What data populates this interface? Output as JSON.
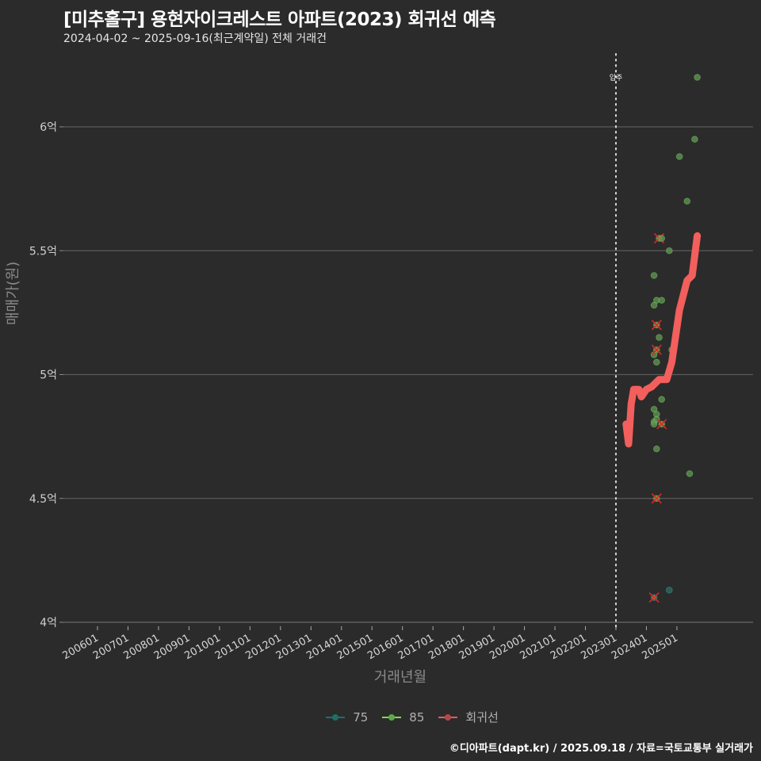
{
  "header": {
    "title": "[미추홀구] 용현자이크레스트 아파트(2023) 회귀선 예측",
    "subtitle": "2024-04-02 ~ 2025-09-16(최근계약일) 전체 거래건"
  },
  "axes": {
    "ylabel": "매매가(원)",
    "xlabel": "거래년월",
    "yticks": [
      "4억",
      "4.5억",
      "5억",
      "5.5억",
      "6억"
    ],
    "xticks": [
      "200601",
      "200701",
      "200801",
      "200901",
      "201001",
      "201101",
      "201201",
      "201301",
      "201401",
      "201501",
      "201601",
      "201701",
      "201801",
      "201901",
      "202001",
      "202101",
      "202201",
      "202301",
      "202401",
      "202501"
    ],
    "vline_label": "입주"
  },
  "legend": {
    "items": [
      {
        "label": "75",
        "color": "#2a9d8f"
      },
      {
        "label": "85",
        "color": "#7ed957"
      },
      {
        "label": "회귀선",
        "color": "#f25f5c"
      }
    ]
  },
  "footer": {
    "credit": "©디아파트(dapt.kr) / 2025.09.18 / 자료=국토교통부 실거래가"
  },
  "colors": {
    "background": "#2b2b2b",
    "grid": "#5a5a5a",
    "regression": "#f25f5c",
    "series_75": "#2a9d8f",
    "series_85": "#6aa85a",
    "outlier_x": "#d62828"
  },
  "chart_data": {
    "type": "scatter",
    "title": "[미추홀구] 용현자이크레스트 아파트(2023) 회귀선 예측",
    "subtitle": "2024-04-02 ~ 2025-09-16(최근계약일) 전체 거래건",
    "xlabel": "거래년월",
    "ylabel": "매매가(원)",
    "ylim": [
      4.0,
      6.3
    ],
    "y_unit": "억",
    "xlim": [
      "200501",
      "202601"
    ],
    "grid": true,
    "legend_position": "bottom",
    "vline": {
      "x": "202301",
      "label": "입주",
      "style": "dotted"
    },
    "series": [
      {
        "name": "75",
        "type": "scatter",
        "points": [
          {
            "x": "2024.04",
            "y": 4.1,
            "outlier": true
          },
          {
            "x": "2024.10",
            "y": 4.13
          }
        ]
      },
      {
        "name": "85",
        "type": "scatter",
        "points": [
          {
            "x": "2024.04",
            "y": 5.4
          },
          {
            "x": "2024.04",
            "y": 5.28
          },
          {
            "x": "2024.04",
            "y": 5.08
          },
          {
            "x": "2024.04",
            "y": 4.86
          },
          {
            "x": "2024.04",
            "y": 4.81
          },
          {
            "x": "2024.04",
            "y": 4.8
          },
          {
            "x": "2024.05",
            "y": 4.7
          },
          {
            "x": "2024.05",
            "y": 4.84
          },
          {
            "x": "2024.05",
            "y": 4.82
          },
          {
            "x": "2024.05",
            "y": 5.3
          },
          {
            "x": "2024.05",
            "y": 5.05
          },
          {
            "x": "2024.05",
            "y": 5.2,
            "outlier": true
          },
          {
            "x": "2024.05",
            "y": 5.1,
            "outlier": true
          },
          {
            "x": "2024.05",
            "y": 4.5,
            "outlier": true
          },
          {
            "x": "2024.06",
            "y": 5.55,
            "outlier": true
          },
          {
            "x": "2024.06",
            "y": 5.15
          },
          {
            "x": "2024.07",
            "y": 5.3
          },
          {
            "x": "2024.07",
            "y": 5.55
          },
          {
            "x": "2024.07",
            "y": 4.9
          },
          {
            "x": "2024.07",
            "y": 4.8,
            "outlier": true
          },
          {
            "x": "2024.10",
            "y": 5.5
          },
          {
            "x": "2024.11",
            "y": 5.1
          },
          {
            "x": "2025.02",
            "y": 5.88
          },
          {
            "x": "2025.05",
            "y": 5.7
          },
          {
            "x": "2025.06",
            "y": 4.6
          },
          {
            "x": "2025.08",
            "y": 5.95
          },
          {
            "x": "2025.09",
            "y": 6.2
          }
        ]
      },
      {
        "name": "회귀선",
        "type": "line",
        "points": [
          {
            "x": "2023.05",
            "y": 4.8
          },
          {
            "x": "2023.06",
            "y": 4.72
          },
          {
            "x": "2023.07",
            "y": 4.88
          },
          {
            "x": "2023.08",
            "y": 4.94
          },
          {
            "x": "2023.10",
            "y": 4.94
          },
          {
            "x": "2023.11",
            "y": 4.91
          },
          {
            "x": "2024.01",
            "y": 4.94
          },
          {
            "x": "2024.03",
            "y": 4.95
          },
          {
            "x": "2024.06",
            "y": 4.98
          },
          {
            "x": "2024.09",
            "y": 4.98
          },
          {
            "x": "2024.11",
            "y": 5.05
          },
          {
            "x": "2025.02",
            "y": 5.26
          },
          {
            "x": "2025.05",
            "y": 5.38
          },
          {
            "x": "2025.07",
            "y": 5.4
          },
          {
            "x": "2025.09",
            "y": 5.56
          }
        ]
      }
    ]
  }
}
